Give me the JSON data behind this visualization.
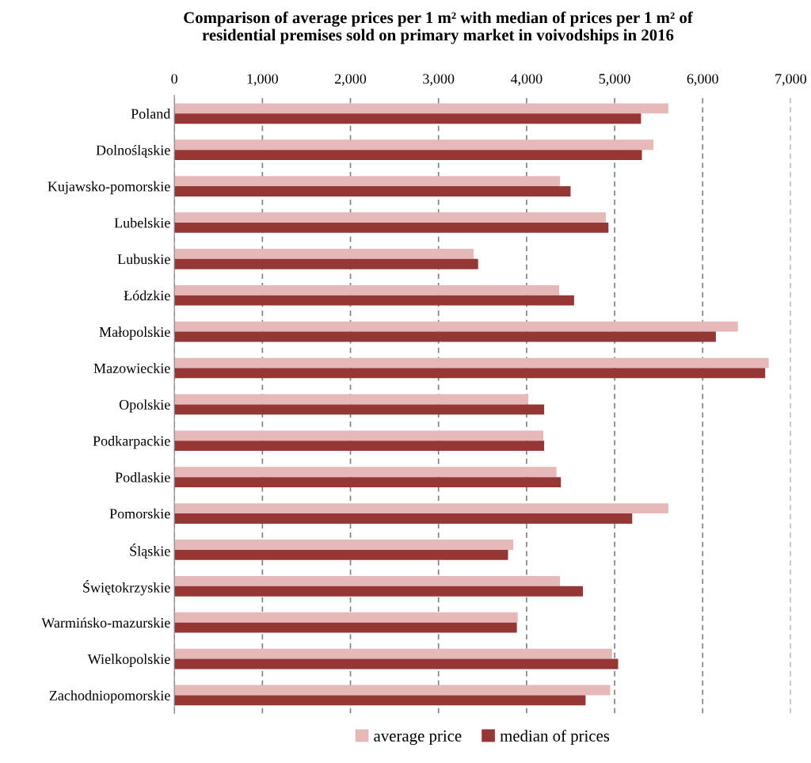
{
  "chart_data": {
    "type": "bar",
    "orientation": "horizontal",
    "title": "Comparison of average prices per 1 m² with median of prices per 1 m² of\nresidential premises sold on primary market in voivodships in 2016",
    "categories": [
      "Poland",
      "Dolnośląskie",
      "Kujawsko-pomorskie",
      "Lubelskie",
      "Lubuskie",
      "Łódzkie",
      "Małopolskie",
      "Mazowieckie",
      "Opolskie",
      "Podkarpackie",
      "Podlaskie",
      "Pomorskie",
      "Śląskie",
      "Świętokrzyskie",
      "Warmińsko-mazurskie",
      "Wielkopolskie",
      "Zachodniopomorskie"
    ],
    "series": [
      {
        "name": "average price",
        "color": "#e6b8b7",
        "values": [
          5610,
          5440,
          4380,
          4900,
          3400,
          4370,
          6400,
          6750,
          4020,
          4190,
          4340,
          5610,
          3850,
          4380,
          3900,
          4970,
          4950
        ]
      },
      {
        "name": "median of prices",
        "color": "#953735",
        "values": [
          5300,
          5310,
          4500,
          4930,
          3450,
          4540,
          6150,
          6710,
          4200,
          4200,
          4390,
          5200,
          3790,
          4640,
          3890,
          5040,
          4670
        ]
      }
    ],
    "xlim": [
      0,
      7000
    ],
    "xticks": [
      {
        "value": 0,
        "label": "0"
      },
      {
        "value": 1000,
        "label": "1,000"
      },
      {
        "value": 2000,
        "label": "2,000"
      },
      {
        "value": 3000,
        "label": "3,000"
      },
      {
        "value": 4000,
        "label": "4,000"
      },
      {
        "value": 5000,
        "label": "5,000"
      },
      {
        "value": 6000,
        "label": "6,000"
      },
      {
        "value": 7000,
        "label": "7,000"
      }
    ],
    "grid": "x",
    "legend": "bottom"
  }
}
